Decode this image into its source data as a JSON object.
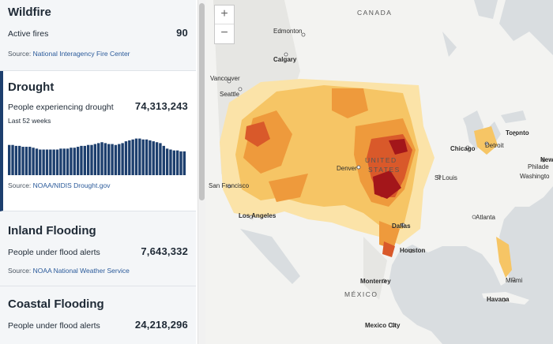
{
  "wildfire": {
    "title": "Wildfire",
    "label": "Active fires",
    "value": "90",
    "source_prefix": "Source: ",
    "source_link": "National Interagency Fire Center"
  },
  "drought": {
    "title": "Drought",
    "label": "People experiencing drought",
    "value": "74,313,243",
    "period": "Last 52 weeks",
    "source_prefix": "Source: ",
    "source_link": "NOAA/NIDIS Drought.gov",
    "bar_color": "#1d3f6e"
  },
  "chart_data": {
    "type": "bar",
    "values": [
      0.66,
      0.66,
      0.64,
      0.64,
      0.62,
      0.62,
      0.62,
      0.6,
      0.58,
      0.56,
      0.56,
      0.56,
      0.56,
      0.56,
      0.56,
      0.58,
      0.58,
      0.58,
      0.6,
      0.6,
      0.62,
      0.64,
      0.64,
      0.66,
      0.66,
      0.68,
      0.7,
      0.72,
      0.7,
      0.68,
      0.68,
      0.66,
      0.68,
      0.7,
      0.74,
      0.76,
      0.78,
      0.8,
      0.8,
      0.78,
      0.78,
      0.76,
      0.74,
      0.72,
      0.7,
      0.64,
      0.58,
      0.56,
      0.54,
      0.54,
      0.52,
      0.52
    ],
    "ylim": [
      0,
      1
    ]
  },
  "inland": {
    "title": "Inland Flooding",
    "label": "People under flood alerts",
    "value": "7,643,332",
    "source_prefix": "Source: ",
    "source_link": "NOAA National Weather Service"
  },
  "coastal": {
    "title": "Coastal Flooding",
    "label": "People under flood alerts",
    "value": "24,218,296"
  },
  "map": {
    "zoom_in": "+",
    "zoom_out": "−",
    "countries": {
      "canada": "CANADA",
      "mexico": "MÉXICO",
      "united": "UNITED",
      "states": "STATES"
    },
    "cities": {
      "edmonton": "Edmonton",
      "calgary": "Calgary",
      "vancouver": "Vancouver",
      "seattle": "Seattle",
      "toronto": "Toronto",
      "detroit": "Detroit",
      "chicago": "Chicago",
      "new_york": "New",
      "philadelphia": "Philade",
      "washington": "Washingto",
      "denver": "Denver",
      "san_francisco": "San Francisco",
      "st_louis": "St Louis",
      "los_angeles": "Los Angeles",
      "atlanta": "Atlanta",
      "dallas": "Dallas",
      "houston": "Houston",
      "miami": "Miami",
      "monterrey": "Monterrey",
      "havana": "Havana",
      "mexico_city": "Mexico City"
    },
    "land_color": "#f3f3f1",
    "water_color": "#d9dde0",
    "drought_colors": [
      "#fbe3a8",
      "#f6c565",
      "#ee9a3c",
      "#d9592a",
      "#a3161a"
    ]
  }
}
